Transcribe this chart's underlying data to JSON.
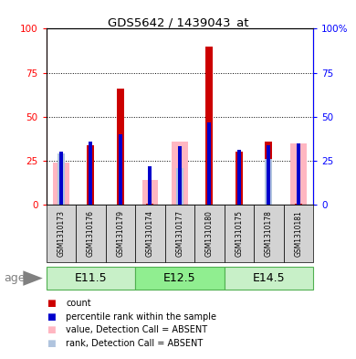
{
  "title": "GDS5642 / 1439043_at",
  "samples": [
    "GSM1310173",
    "GSM1310176",
    "GSM1310179",
    "GSM1310174",
    "GSM1310177",
    "GSM1310180",
    "GSM1310175",
    "GSM1310178",
    "GSM1310181"
  ],
  "groups": [
    {
      "label": "E11.5",
      "span": [
        0,
        3
      ]
    },
    {
      "label": "E12.5",
      "span": [
        3,
        6
      ]
    },
    {
      "label": "E14.5",
      "span": [
        6,
        9
      ]
    }
  ],
  "count_values": [
    0.5,
    34,
    66,
    0.5,
    0.5,
    90,
    30,
    36,
    0.5
  ],
  "percentile_values": [
    30,
    36,
    40,
    22,
    33,
    47,
    31,
    34,
    35
  ],
  "absent_value_values": [
    24,
    0,
    0,
    14,
    36,
    0,
    0,
    0,
    35
  ],
  "absent_rank_values": [
    29,
    0,
    0,
    0,
    21,
    0,
    0,
    26,
    0
  ],
  "is_absent": [
    true,
    false,
    false,
    true,
    true,
    false,
    false,
    false,
    true
  ],
  "ylim": [
    0,
    100
  ],
  "yticks": [
    0,
    25,
    50,
    75,
    100
  ],
  "color_count": "#cc0000",
  "color_percentile": "#0000cc",
  "color_absent_value": "#ffb6c1",
  "color_absent_rank": "#b0c4de",
  "group_colors": [
    "#c8f0c8",
    "#90EE90",
    "#c8f0c8"
  ],
  "group_border": "#50b050",
  "sample_bg": "#d3d3d3",
  "age_label": "age"
}
